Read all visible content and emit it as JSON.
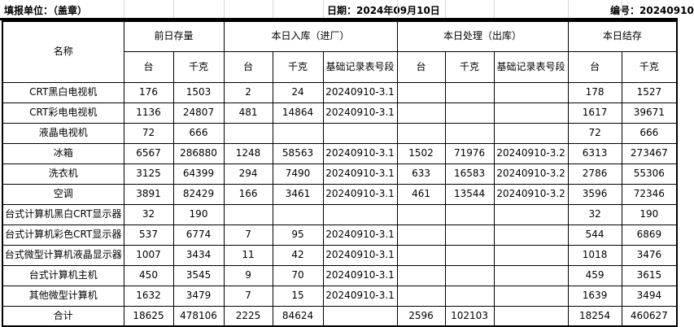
{
  "info_bar": {
    "unit": "填报单位：（盖章）",
    "date": "日期：2024年09月10日",
    "serial": "编号：20240910"
  },
  "table": {
    "name_header": "名称",
    "groups": [
      {
        "label": "前日存量",
        "cols": [
          "台",
          "千克"
        ]
      },
      {
        "label": "本日入库（进厂）",
        "cols": [
          "台",
          "千克",
          "基础记录表号段"
        ]
      },
      {
        "label": "本日处理（出库）",
        "cols": [
          "台",
          "千克",
          "基础记录表号段"
        ]
      },
      {
        "label": "本日结存",
        "cols": [
          "台",
          "千克"
        ]
      }
    ],
    "rows": [
      {
        "name": "CRT黑白电视机",
        "is_total": false,
        "cells": [
          "176",
          "1503",
          "2",
          "24",
          "20240910-3.1",
          "",
          "",
          "",
          "178",
          "1527"
        ]
      },
      {
        "name": "CRT彩电电视机",
        "is_total": false,
        "cells": [
          "1136",
          "24807",
          "481",
          "14864",
          "20240910-3.1",
          "",
          "",
          "",
          "1617",
          "39671"
        ]
      },
      {
        "name": "液晶电视机",
        "is_total": false,
        "cells": [
          "72",
          "666",
          "",
          "",
          "",
          "",
          "",
          "",
          "72",
          "666"
        ]
      },
      {
        "name": "冰箱",
        "is_total": false,
        "cells": [
          "6567",
          "286880",
          "1248",
          "58563",
          "20240910-3.1",
          "1502",
          "71976",
          "20240910-3.2",
          "6313",
          "273467"
        ]
      },
      {
        "name": "洗衣机",
        "is_total": false,
        "cells": [
          "3125",
          "64399",
          "294",
          "7490",
          "20240910-3.1",
          "633",
          "16583",
          "20240910-3.2",
          "2786",
          "55306"
        ]
      },
      {
        "name": "空调",
        "is_total": false,
        "cells": [
          "3891",
          "82429",
          "166",
          "3461",
          "20240910-3.1",
          "461",
          "13544",
          "20240910-3.2",
          "3596",
          "72346"
        ]
      },
      {
        "name": "台式计算机黑白CRT显示器",
        "is_total": false,
        "cells": [
          "32",
          "190",
          "",
          "",
          "",
          "",
          "",
          "",
          "32",
          "190"
        ]
      },
      {
        "name": "台式计算机彩色CRT显示器",
        "is_total": false,
        "cells": [
          "537",
          "6774",
          "7",
          "95",
          "20240910-3.1",
          "",
          "",
          "",
          "544",
          "6869"
        ]
      },
      {
        "name": "台式微型计算机液晶显示器",
        "is_total": false,
        "cells": [
          "1007",
          "3434",
          "11",
          "42",
          "20240910-3.1",
          "",
          "",
          "",
          "1018",
          "3476"
        ]
      },
      {
        "name": "台式计算机主机",
        "is_total": false,
        "cells": [
          "450",
          "3545",
          "9",
          "70",
          "20240910-3.1",
          "",
          "",
          "",
          "459",
          "3615"
        ]
      },
      {
        "name": "其他微型计算机",
        "is_total": false,
        "cells": [
          "1632",
          "3479",
          "7",
          "15",
          "20240910-3.1",
          "",
          "",
          "",
          "1639",
          "3494"
        ]
      },
      {
        "name": "合计",
        "is_total": true,
        "cells": [
          "18625",
          "478106",
          "2225",
          "84624",
          "",
          "2596",
          "102103",
          "",
          "18254",
          "460627"
        ]
      }
    ]
  }
}
